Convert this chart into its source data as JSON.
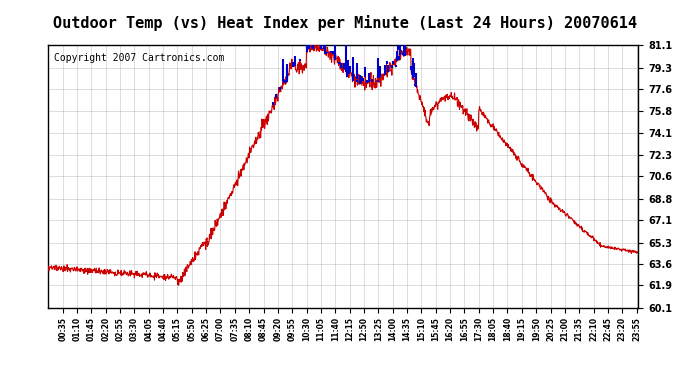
{
  "title": "Outdoor Temp (vs) Heat Index per Minute (Last 24 Hours) 20070614",
  "copyright": "Copyright 2007 Cartronics.com",
  "y_min": 60.1,
  "y_max": 81.1,
  "y_ticks": [
    60.1,
    61.9,
    63.6,
    65.3,
    67.1,
    68.8,
    70.6,
    72.3,
    74.1,
    75.8,
    77.6,
    79.3,
    81.1
  ],
  "background_color": "#ffffff",
  "plot_bg_color": "#ffffff",
  "line_color_temp": "#cc0000",
  "line_color_heat": "#0000cc",
  "title_fontsize": 11,
  "copyright_fontsize": 7
}
